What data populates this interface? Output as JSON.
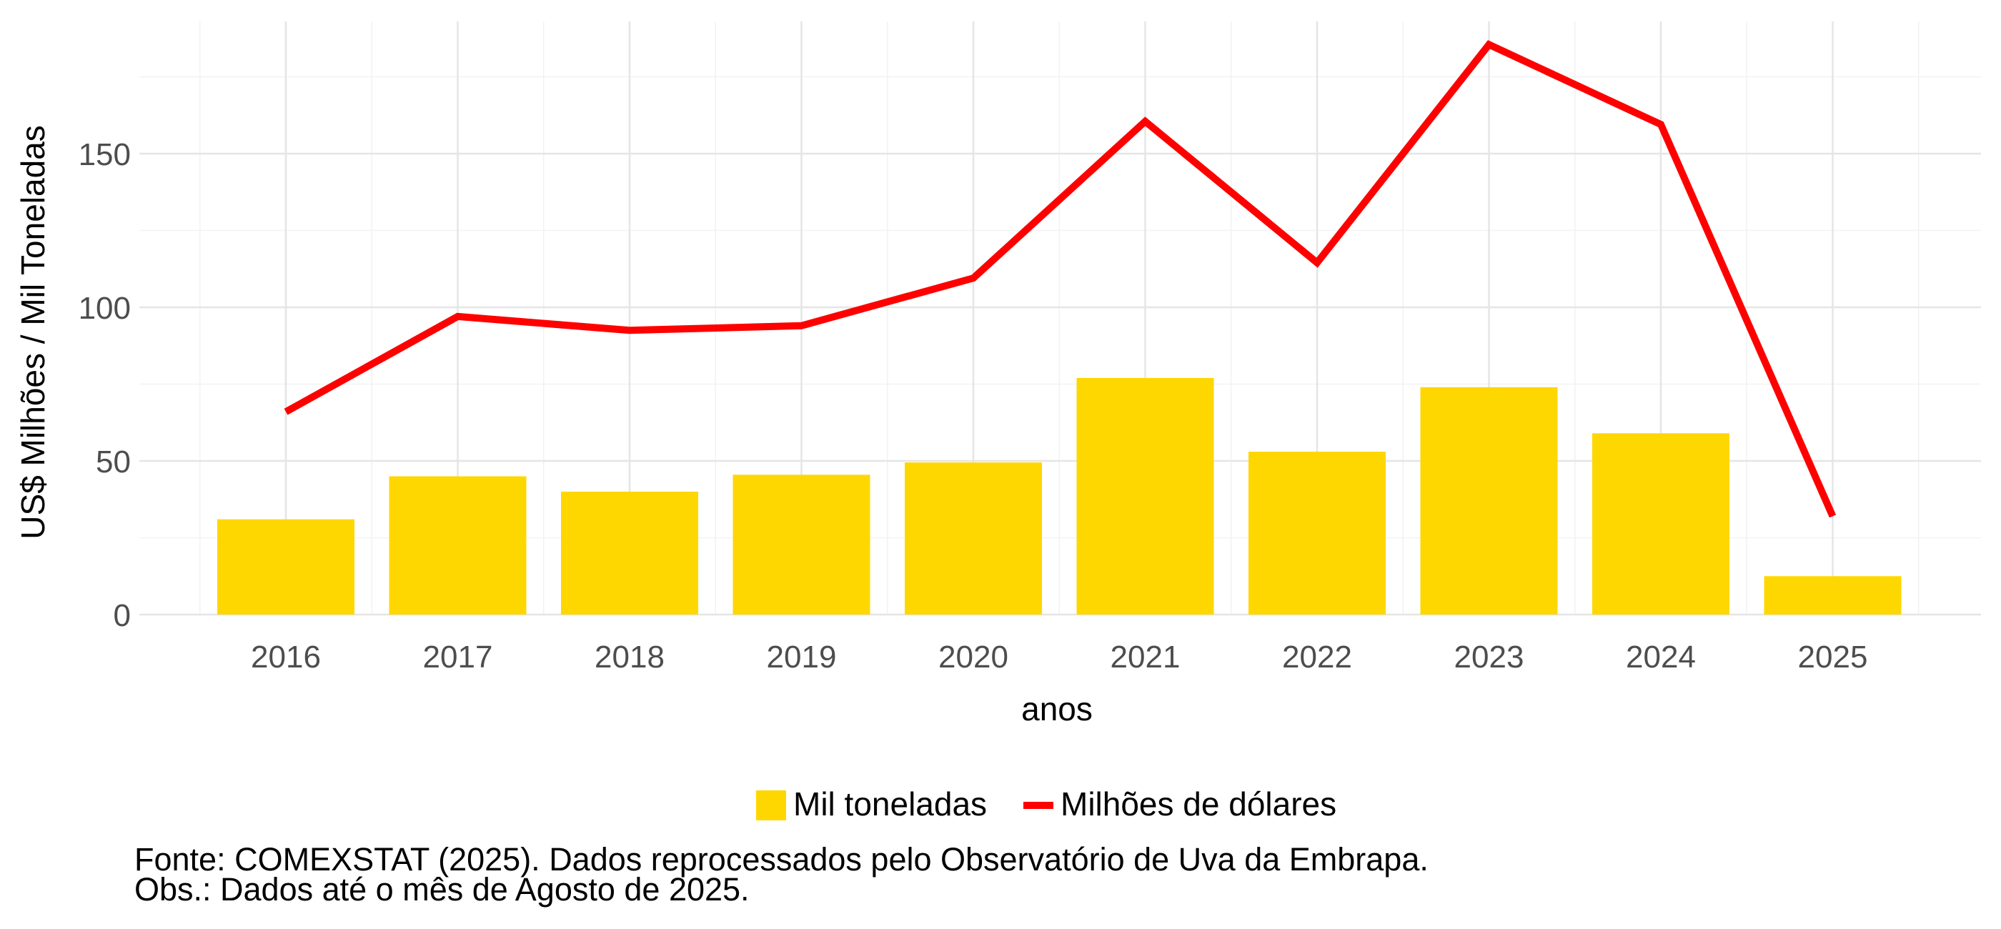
{
  "chart_data": {
    "type": "bar",
    "categories": [
      "2016",
      "2017",
      "2018",
      "2019",
      "2020",
      "2021",
      "2022",
      "2023",
      "2024",
      "2025"
    ],
    "series": [
      {
        "name": "Mil toneladas",
        "type": "bar",
        "color": "#FFD700",
        "values": [
          31,
          45,
          40,
          45.5,
          49.5,
          77,
          53,
          74,
          59,
          12.5
        ]
      },
      {
        "name": "Milhões de dólares",
        "type": "line",
        "color": "#FF0000",
        "values": [
          66,
          97,
          92.5,
          94,
          109.5,
          160.5,
          114.5,
          185.5,
          159.5,
          32
        ]
      }
    ],
    "xlabel": "anos",
    "ylabel": "US$ Milhões / Mil Toneladas",
    "ylim": [
      0,
      193
    ],
    "yticks": [
      0,
      50,
      100,
      150
    ],
    "grid": true,
    "legend_position": "bottom"
  },
  "caption": {
    "source": "Fonte: COMEXSTAT (2025). Dados reprocessados pelo Observatório de Uva da Embrapa.",
    "note": "Obs.: Dados até o mês de Agosto de 2025."
  }
}
